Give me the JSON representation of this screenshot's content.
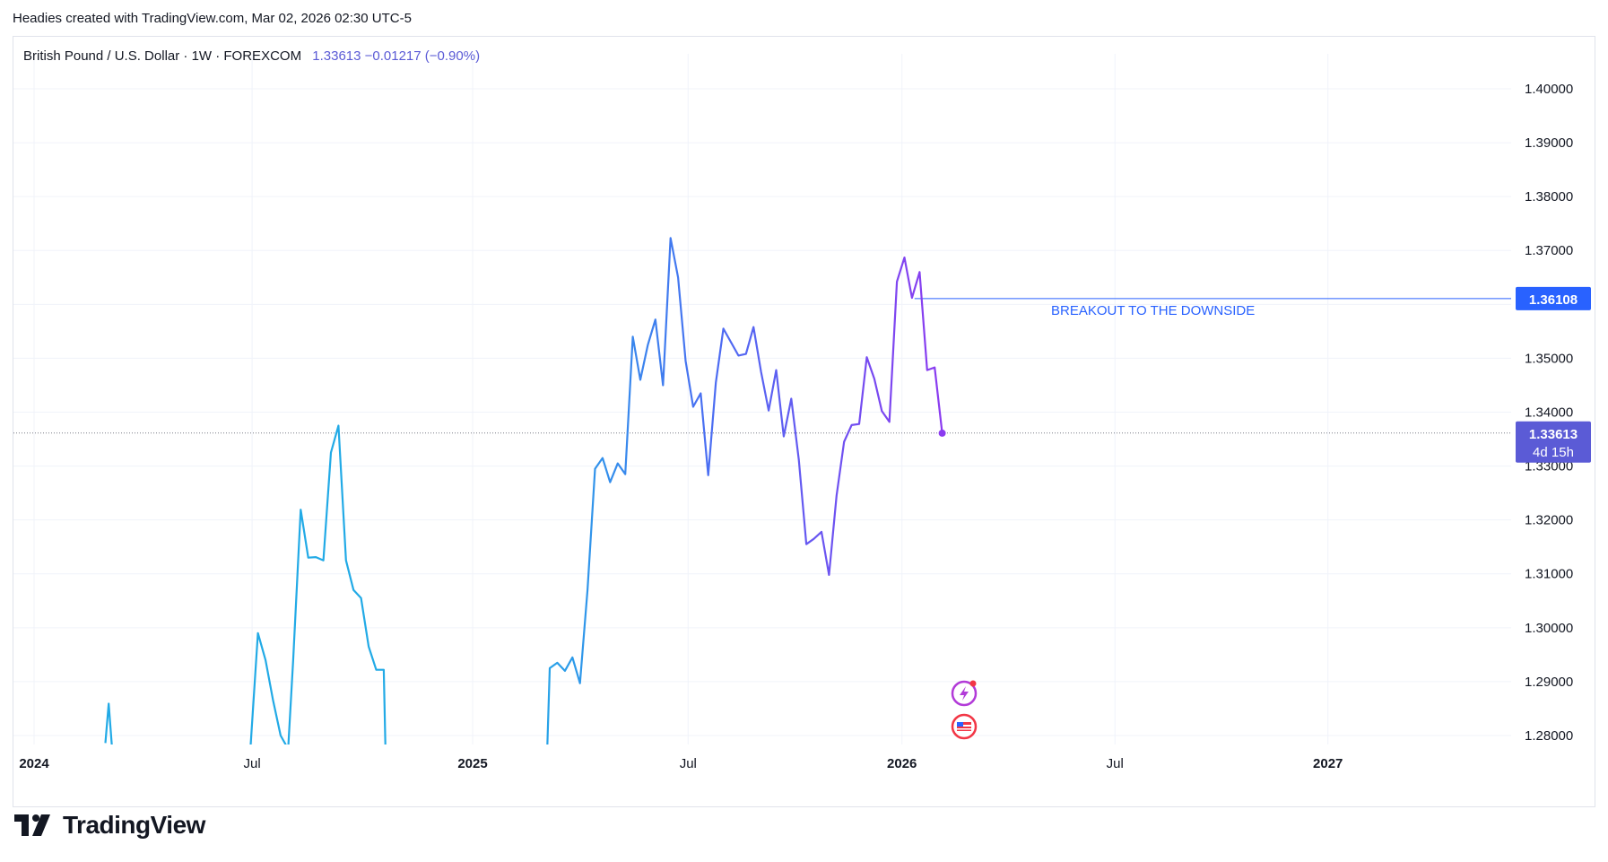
{
  "header": {
    "attribution": "Headies created with TradingView.com, Mar 02, 2026 02:30 UTC-5"
  },
  "legend": {
    "symbol": "British Pound / U.S. Dollar · 1W · FOREXCOM",
    "values": "1.33613  −0.01217 (−0.90%)"
  },
  "price_label": {
    "last": "1.33613",
    "countdown": "4d 15h",
    "level": "1.36108"
  },
  "annotation": {
    "text": "BREAKOUT TO THE DOWNSIDE"
  },
  "footer": {
    "brand": "TradingView"
  },
  "colors": {
    "line_start": "#22aae6",
    "line_mid": "#4a6ef2",
    "line_end": "#8b3bf0",
    "level_line": "#2962ff",
    "price_tag": "#5b5bd6",
    "grid": "#f0f3fa"
  },
  "chart_data": {
    "type": "line",
    "title": "British Pound / U.S. Dollar · 1W · FOREXCOM",
    "xlabel": "",
    "ylabel": "",
    "ylim": [
      1.278,
      1.4
    ],
    "y_ticks": [
      "1.40000",
      "1.39000",
      "1.38000",
      "1.37000",
      "1.36000",
      "1.35000",
      "1.34000",
      "1.33000",
      "1.32000",
      "1.31000",
      "1.30000",
      "1.29000",
      "1.28000"
    ],
    "x_ticks": [
      {
        "label": "2024",
        "week": 0
      },
      {
        "label": "Jul",
        "week": 26
      },
      {
        "label": "2025",
        "week": 52.3
      },
      {
        "label": "Jul",
        "week": 78
      },
      {
        "label": "2026",
        "week": 103.5
      },
      {
        "label": "Jul",
        "week": 128.9
      },
      {
        "label": "2027",
        "week": 154.3
      }
    ],
    "grid": true,
    "series": [
      {
        "values": [
          [
            8.5,
            1.2786
          ],
          [
            8.9,
            1.2859
          ],
          [
            9.3,
            1.2775
          ],
          [
            25.8,
            1.2775
          ],
          [
            26.7,
            1.299
          ],
          [
            27.6,
            1.294
          ],
          [
            28.5,
            1.2865
          ],
          [
            29.4,
            1.28
          ],
          [
            30.3,
            1.2775
          ],
          [
            30.9,
            1.294
          ],
          [
            31.8,
            1.3219
          ],
          [
            32.7,
            1.313
          ],
          [
            33.6,
            1.3131
          ],
          [
            34.5,
            1.3125
          ],
          [
            35.4,
            1.3325
          ],
          [
            36.3,
            1.3375
          ],
          [
            37.2,
            1.3125
          ],
          [
            38.1,
            1.307
          ],
          [
            39.0,
            1.3055
          ],
          [
            39.9,
            1.2965
          ],
          [
            40.8,
            1.2922
          ],
          [
            41.7,
            1.2922
          ],
          [
            41.9,
            1.2775
          ],
          [
            61.2,
            1.2775
          ],
          [
            61.5,
            1.2925
          ],
          [
            62.4,
            1.2935
          ],
          [
            63.3,
            1.292
          ],
          [
            64.2,
            1.2945
          ],
          [
            65.1,
            1.2897
          ],
          [
            66.0,
            1.307
          ],
          [
            66.9,
            1.3295
          ],
          [
            67.8,
            1.3315
          ],
          [
            68.7,
            1.327
          ],
          [
            69.6,
            1.3305
          ],
          [
            70.5,
            1.3285
          ],
          [
            71.4,
            1.354
          ],
          [
            72.3,
            1.346
          ],
          [
            73.2,
            1.3525
          ],
          [
            74.1,
            1.3572
          ],
          [
            75.0,
            1.345
          ],
          [
            75.9,
            1.3723
          ],
          [
            76.8,
            1.365
          ],
          [
            77.7,
            1.3495
          ],
          [
            78.6,
            1.341
          ],
          [
            79.5,
            1.3435
          ],
          [
            80.4,
            1.3283
          ],
          [
            81.3,
            1.3455
          ],
          [
            82.2,
            1.3555
          ],
          [
            83.1,
            1.353
          ],
          [
            84.0,
            1.3505
          ],
          [
            84.9,
            1.3508
          ],
          [
            85.8,
            1.3558
          ],
          [
            86.7,
            1.3475
          ],
          [
            87.6,
            1.3403
          ],
          [
            88.5,
            1.3478
          ],
          [
            89.4,
            1.3355
          ],
          [
            90.3,
            1.3425
          ],
          [
            91.2,
            1.3312
          ],
          [
            92.1,
            1.3155
          ],
          [
            93.0,
            1.3165
          ],
          [
            93.9,
            1.3178
          ],
          [
            94.8,
            1.3098
          ],
          [
            95.7,
            1.3245
          ],
          [
            96.6,
            1.3345
          ],
          [
            97.5,
            1.3376
          ],
          [
            98.4,
            1.3378
          ],
          [
            99.3,
            1.3502
          ],
          [
            100.2,
            1.3462
          ],
          [
            101.1,
            1.3402
          ],
          [
            102.0,
            1.3382
          ],
          [
            102.9,
            1.3642
          ],
          [
            103.8,
            1.3687
          ],
          [
            104.7,
            1.3612
          ],
          [
            105.6,
            1.366
          ],
          [
            106.5,
            1.3478
          ],
          [
            107.4,
            1.3483
          ],
          [
            108.3,
            1.3361
          ]
        ]
      }
    ]
  }
}
